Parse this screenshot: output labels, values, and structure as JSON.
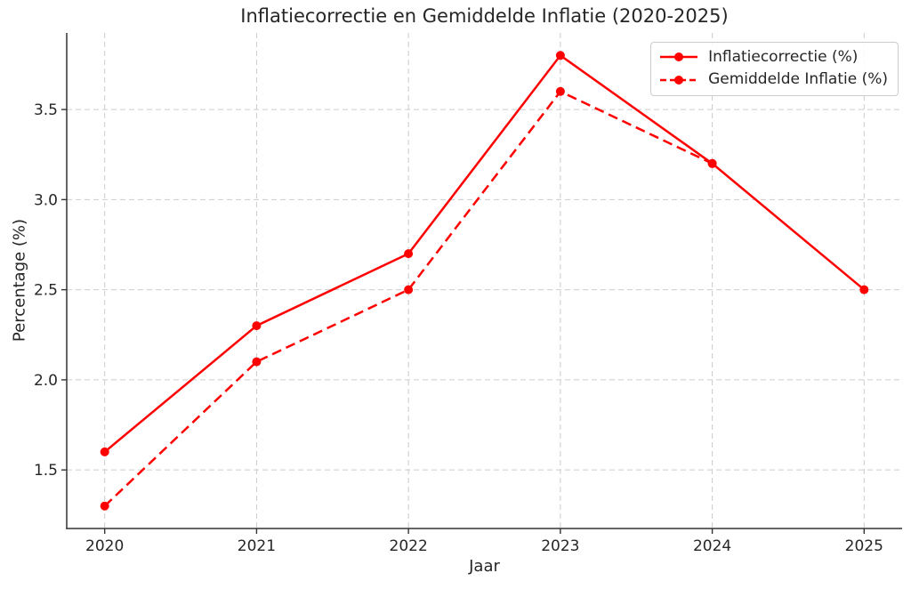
{
  "chart_data": {
    "type": "line",
    "title": "Inflatiecorrectie en Gemiddelde Inflatie (2020-2025)",
    "xlabel": "Jaar",
    "ylabel": "Percentage (%)",
    "x": [
      2020,
      2021,
      2022,
      2023,
      2024,
      2025
    ],
    "xticks": [
      2020,
      2021,
      2022,
      2023,
      2024,
      2025
    ],
    "xticklabels": [
      "2020",
      "2021",
      "2022",
      "2023",
      "2024",
      "2025"
    ],
    "yticks": [
      1.5,
      2.0,
      2.5,
      3.0,
      3.5
    ],
    "yticklabels": [
      "1.5",
      "2.0",
      "2.5",
      "3.0",
      "3.5"
    ],
    "xlim": [
      2019.75,
      2025.25
    ],
    "ylim": [
      1.175,
      3.925
    ],
    "grid": true,
    "legend_position": "upper right",
    "series": [
      {
        "name": "Inflatiecorrectie (%)",
        "line_style": "solid",
        "marker": "circle",
        "color": "#ff0000",
        "values": [
          1.6,
          2.3,
          2.7,
          3.8,
          3.2,
          2.5
        ]
      },
      {
        "name": "Gemiddelde Inflatie (%)",
        "line_style": "dashed",
        "marker": "circle",
        "color": "#ff0000",
        "values": [
          1.3,
          2.1,
          2.5,
          3.6,
          3.2,
          null
        ]
      }
    ]
  },
  "colors": {
    "accent": "#ff0000",
    "text": "#262626",
    "spine": "#333333",
    "grid": "#cccccc",
    "legend_border": "#cccccc",
    "background": "#ffffff"
  }
}
